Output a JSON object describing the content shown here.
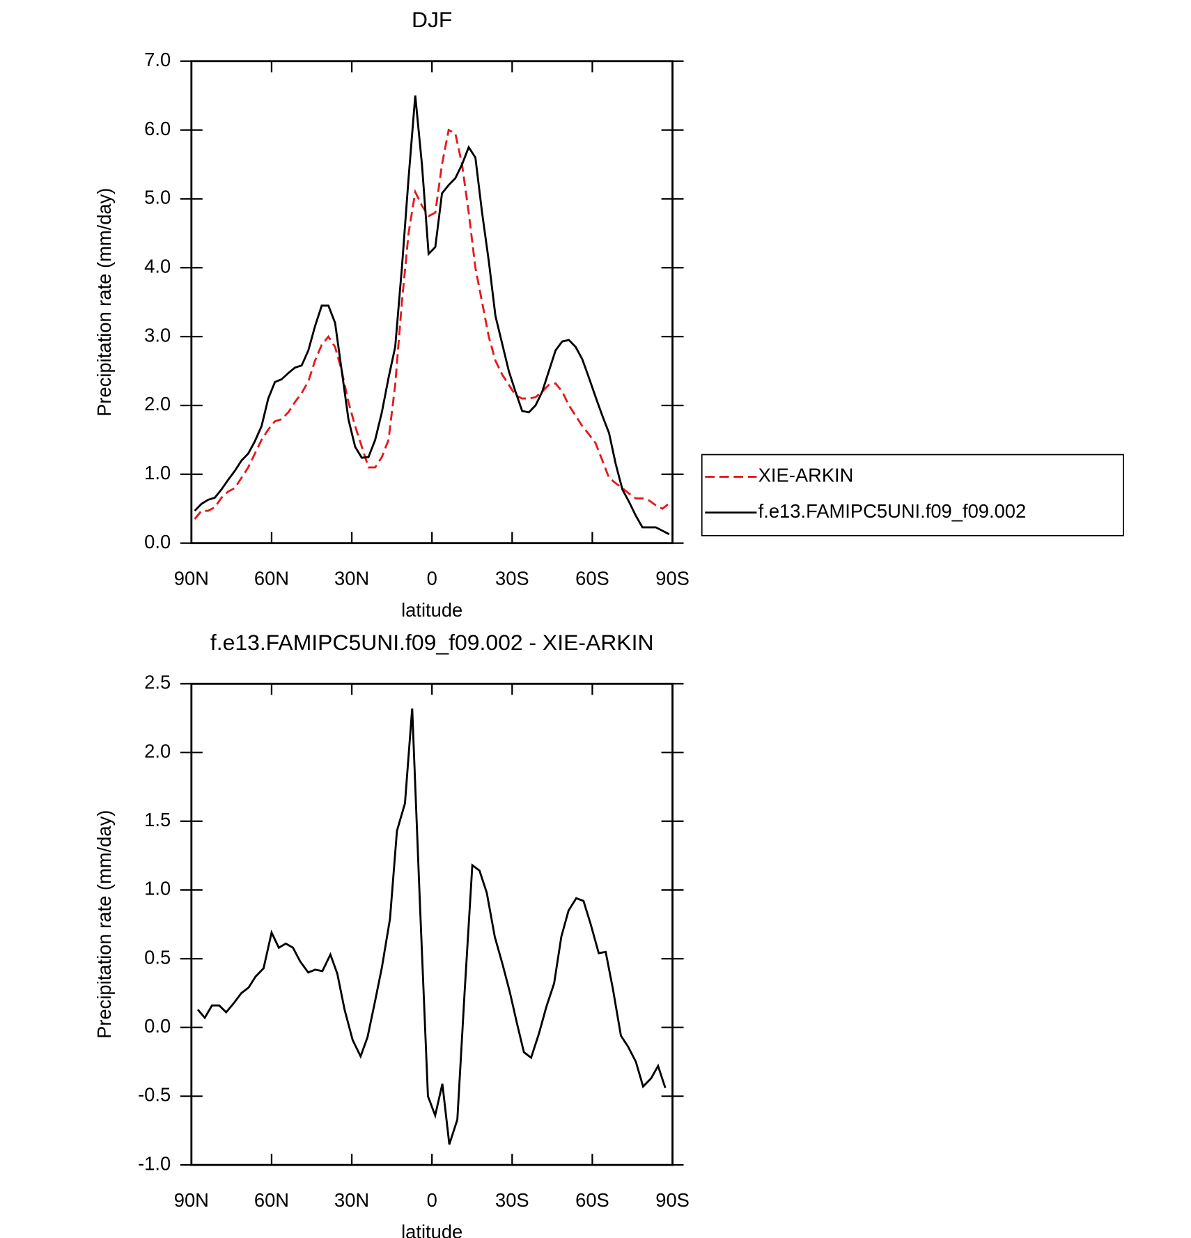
{
  "chart_data": [
    {
      "type": "line",
      "title": "DJF",
      "ylabel": "Precipitation rate (mm/day)",
      "xlabel": "latitude",
      "x": [
        88.75,
        86.25,
        83.75,
        81.25,
        78.75,
        76.25,
        73.75,
        71.25,
        68.75,
        66.25,
        63.75,
        61.25,
        58.75,
        56.25,
        53.75,
        51.25,
        48.75,
        46.25,
        43.75,
        41.25,
        38.75,
        36.25,
        33.75,
        31.25,
        28.75,
        26.25,
        23.75,
        21.25,
        18.75,
        16.25,
        13.75,
        11.25,
        8.75,
        6.25,
        3.75,
        1.25,
        -1.25,
        -3.75,
        -6.25,
        -8.75,
        -11.25,
        -13.75,
        -16.25,
        -18.75,
        -21.25,
        -23.75,
        -26.25,
        -28.75,
        -31.25,
        -33.75,
        -36.25,
        -38.75,
        -41.25,
        -43.75,
        -46.25,
        -48.75,
        -51.25,
        -53.75,
        -56.25,
        -58.75,
        -61.25,
        -63.75,
        -66.25,
        -68.75,
        -71.25,
        -73.75,
        -76.25,
        -78.75,
        -81.25,
        -83.75,
        -86.25,
        -88.75
      ],
      "series": [
        {
          "name": "XIE-ARKIN",
          "color": "#e31a1c",
          "line_style": "dashed",
          "values": [
            0.35,
            0.47,
            0.47,
            0.52,
            0.66,
            0.75,
            0.8,
            0.95,
            1.1,
            1.3,
            1.5,
            1.65,
            1.77,
            1.8,
            1.9,
            2.05,
            2.18,
            2.35,
            2.65,
            2.88,
            3.0,
            2.85,
            2.5,
            2.05,
            1.7,
            1.4,
            1.1,
            1.1,
            1.25,
            1.5,
            2.3,
            3.5,
            4.5,
            5.1,
            4.9,
            4.75,
            4.8,
            5.5,
            6.0,
            5.95,
            5.5,
            4.8,
            4.0,
            3.5,
            3.0,
            2.65,
            2.45,
            2.3,
            2.15,
            2.1,
            2.1,
            2.12,
            2.2,
            2.3,
            2.32,
            2.2,
            2.0,
            1.85,
            1.7,
            1.58,
            1.45,
            1.2,
            0.95,
            0.87,
            0.8,
            0.72,
            0.65,
            0.65,
            0.62,
            0.55,
            0.5,
            0.58
          ]
        },
        {
          "name": "f.e13.FAMIPC5UNI.f09_f09.002",
          "color": "#000000",
          "line_style": "solid",
          "values": [
            0.47,
            0.57,
            0.63,
            0.66,
            0.78,
            0.92,
            1.05,
            1.2,
            1.3,
            1.48,
            1.7,
            2.1,
            2.34,
            2.38,
            2.47,
            2.55,
            2.58,
            2.8,
            3.15,
            3.45,
            3.45,
            3.2,
            2.5,
            1.8,
            1.4,
            1.24,
            1.25,
            1.5,
            1.9,
            2.4,
            2.85,
            4.0,
            5.3,
            6.5,
            5.5,
            4.2,
            4.3,
            5.08,
            5.2,
            5.3,
            5.5,
            5.75,
            5.6,
            4.8,
            4.1,
            3.3,
            2.9,
            2.5,
            2.2,
            1.92,
            1.9,
            2.0,
            2.2,
            2.5,
            2.8,
            2.93,
            2.95,
            2.85,
            2.67,
            2.4,
            2.12,
            1.85,
            1.6,
            1.15,
            0.78,
            0.6,
            0.4,
            0.23,
            0.23,
            0.23,
            0.18,
            0.13
          ]
        }
      ],
      "xlim": [
        90,
        -90
      ],
      "xticks": [
        {
          "value": 90,
          "label": "90N"
        },
        {
          "value": 60,
          "label": "60N"
        },
        {
          "value": 30,
          "label": "30N"
        },
        0,
        {
          "value": -30,
          "label": "30S"
        },
        {
          "value": -60,
          "label": "60S"
        },
        {
          "value": -90,
          "label": "90S"
        }
      ],
      "ylim": [
        0,
        7
      ],
      "yticks": [
        {
          "value": 0,
          "label": "0.0"
        },
        {
          "value": 1,
          "label": "1.0"
        },
        {
          "value": 2,
          "label": "2.0"
        },
        {
          "value": 3,
          "label": "3.0"
        },
        {
          "value": 4,
          "label": "4.0"
        },
        {
          "value": 5,
          "label": "5.0"
        },
        {
          "value": 6,
          "label": "6.0"
        },
        {
          "value": 7,
          "label": "7.0"
        }
      ],
      "grid": false,
      "legend": "right"
    },
    {
      "type": "line",
      "title": "f.e13.FAMIPC5UNI.f09_f09.002 - XIE-ARKIN",
      "ylabel": "Precipitation rate (mm/day)",
      "xlabel": "latitude",
      "x": [
        87.6,
        85.0,
        82.3,
        79.6,
        77.0,
        74.0,
        71.3,
        68.6,
        66.0,
        63.0,
        60.0,
        57.3,
        54.7,
        52.0,
        49.3,
        46.3,
        43.7,
        41.0,
        38.0,
        35.4,
        32.7,
        29.7,
        26.7,
        24.1,
        21.4,
        18.7,
        15.7,
        13.1,
        10.1,
        7.4,
        4.5,
        1.5,
        -1.2,
        -3.9,
        -6.5,
        -9.5,
        -12.2,
        -15.1,
        -17.8,
        -20.5,
        -23.5,
        -26.4,
        -29.1,
        -31.8,
        -34.4,
        -37.1,
        -40.1,
        -42.8,
        -45.7,
        -48.4,
        -51.1,
        -54.0,
        -56.7,
        -59.4,
        -62.4,
        -65.0,
        -67.7,
        -70.7,
        -73.4,
        -76.3,
        -79.0,
        -82.0,
        -84.6,
        -87.3
      ],
      "values": [
        0.13,
        0.07,
        0.16,
        0.16,
        0.11,
        0.18,
        0.25,
        0.29,
        0.37,
        0.43,
        0.69,
        0.58,
        0.61,
        0.58,
        0.48,
        0.4,
        0.42,
        0.41,
        0.53,
        0.39,
        0.13,
        -0.09,
        -0.21,
        -0.07,
        0.18,
        0.44,
        0.79,
        1.43,
        1.63,
        2.32,
        0.9,
        -0.5,
        -0.64,
        -0.41,
        -0.85,
        -0.67,
        0.25,
        1.18,
        1.14,
        0.98,
        0.66,
        0.46,
        0.26,
        0.03,
        -0.18,
        -0.22,
        -0.04,
        0.15,
        0.32,
        0.66,
        0.85,
        0.94,
        0.92,
        0.75,
        0.54,
        0.55,
        0.28,
        -0.06,
        -0.14,
        -0.25,
        -0.43,
        -0.37,
        -0.28,
        -0.44
      ],
      "color": "#000000",
      "line_style": "solid",
      "xlim": [
        90,
        -90
      ],
      "xticks": [
        {
          "value": 90,
          "label": "90N"
        },
        {
          "value": 60,
          "label": "60N"
        },
        {
          "value": 30,
          "label": "30N"
        },
        0,
        {
          "value": -30,
          "label": "30S"
        },
        {
          "value": -60,
          "label": "60S"
        },
        {
          "value": -90,
          "label": "90S"
        }
      ],
      "ylim": [
        -1,
        2.5
      ],
      "yticks": [
        {
          "value": -1,
          "label": "-1.0"
        },
        -0.5,
        {
          "value": 0,
          "label": "0.0"
        },
        0.5,
        {
          "value": 1,
          "label": "1.0"
        },
        1.5,
        {
          "value": 2,
          "label": "2.0"
        },
        2.5
      ],
      "grid": false
    }
  ]
}
